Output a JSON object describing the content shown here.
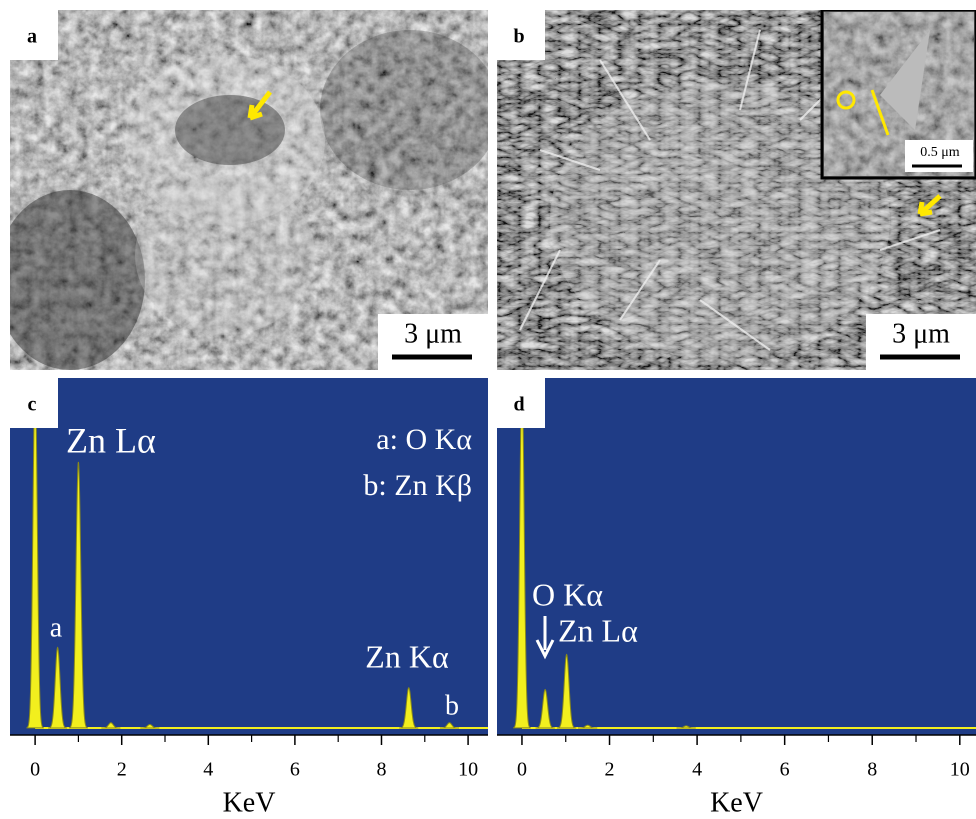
{
  "panels": {
    "a": {
      "label": "a",
      "scale_bar": "3 μm"
    },
    "b": {
      "label": "b",
      "scale_bar": "3 μm",
      "inset_scale_bar": "0.5 μm"
    }
  },
  "chart_data": [
    {
      "type": "spectrum",
      "label": "c",
      "xlabel": "KeV",
      "xlim": [
        -0.58,
        10.46
      ],
      "xticks": [
        0,
        2,
        4,
        6,
        8,
        10
      ],
      "ylim": [
        0,
        100
      ],
      "color": "#f2ef1e",
      "peaks": {
        "x": [
          0,
          0.52,
          1.0,
          1.75,
          2.65,
          8.63,
          9.57
        ],
        "values": [
          100,
          23,
          76,
          1.5,
          1,
          11.5,
          1.5
        ]
      },
      "annotations": [
        "Zn Lα",
        "a: O Kα",
        "b: Zn Kβ",
        "a",
        "Zn Kα",
        "b"
      ]
    },
    {
      "type": "spectrum",
      "label": "d",
      "xlabel": "KeV",
      "xlim": [
        -0.57,
        10.37
      ],
      "xticks": [
        0,
        2,
        4,
        6,
        8,
        10
      ],
      "ylim": [
        0,
        100
      ],
      "color": "#f2ef1e",
      "peaks": {
        "x": [
          0,
          0.53,
          1.02,
          1.5,
          3.75
        ],
        "values": [
          100,
          11,
          21,
          0.8,
          0.6
        ]
      },
      "annotations": [
        "O Kα",
        "Zn Lα"
      ]
    }
  ]
}
